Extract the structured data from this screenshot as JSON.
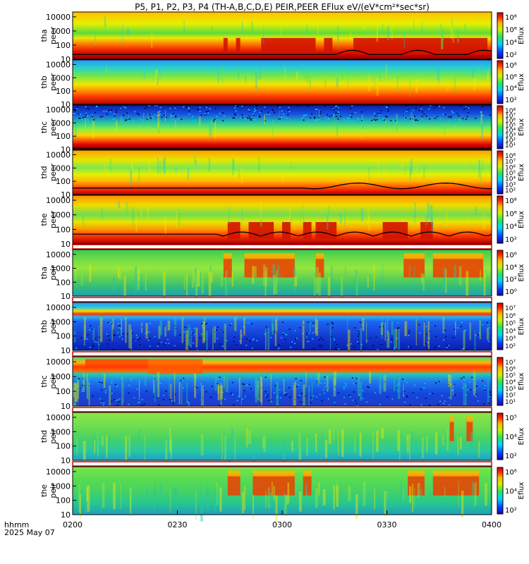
{
  "chart_data": {
    "type": "heatmap",
    "title": "P5, P1, P2, P3, P4 (TH-A,B,C,D,E) PEIR,PEER EFlux eV/(eV*cm²*sec*sr)",
    "x_axis": {
      "label_line1": "hhmm",
      "label_line2": "2025 May 07",
      "range": [
        "0200",
        "0400"
      ],
      "ticks": [
        "0200",
        "0230",
        "0300",
        "0330",
        "0400"
      ]
    },
    "y_scale": "log",
    "y_ticks": [
      "10",
      "100",
      "1000",
      "10000"
    ],
    "colorbar_label": "Eflux",
    "colormap": "rainbow (blue-green-yellow-red)",
    "panels": [
      {
        "probe": "tha",
        "species": "peer",
        "ylabel": "tha peer",
        "colorbar_ticks": [
          "10⁸",
          "10⁶",
          "10⁴",
          "10²"
        ],
        "has_black_curve": true
      },
      {
        "probe": "thb",
        "species": "peer",
        "ylabel": "thb peer",
        "colorbar_ticks": [
          "10⁸",
          "10⁶",
          "10⁴",
          "10²"
        ],
        "has_black_curve": false
      },
      {
        "probe": "thc",
        "species": "peer",
        "ylabel": "thc peer",
        "colorbar_ticks": [
          "10⁸",
          "10⁷",
          "10⁶",
          "10⁵",
          "10⁴",
          "10³",
          "10²",
          "10¹"
        ],
        "has_black_curve": true
      },
      {
        "probe": "thd",
        "species": "peer",
        "ylabel": "thd peer",
        "colorbar_ticks": [
          "10⁸",
          "10⁷",
          "10⁶",
          "10⁵",
          "10⁴",
          "10³",
          "10²"
        ],
        "has_black_curve": true
      },
      {
        "probe": "the",
        "species": "peer",
        "ylabel": "the peer",
        "colorbar_ticks": [
          "10⁸",
          "10⁶",
          "10⁴",
          "10²"
        ],
        "has_black_curve": true
      },
      {
        "probe": "tha",
        "species": "peir",
        "ylabel": "tha peir",
        "colorbar_ticks": [
          "10⁶",
          "10⁴",
          "10²",
          "10⁰"
        ],
        "has_black_curve": false
      },
      {
        "probe": "thb",
        "species": "peir",
        "ylabel": "thb peir",
        "colorbar_ticks": [
          "10⁷",
          "10⁶",
          "10⁵",
          "10⁴",
          "10³",
          "10²"
        ],
        "has_black_curve": false
      },
      {
        "probe": "thc",
        "species": "peir",
        "ylabel": "thc peir",
        "colorbar_ticks": [
          "10⁷",
          "10⁶",
          "10⁵",
          "10⁴",
          "10³",
          "10²",
          "10¹"
        ],
        "has_black_curve": false
      },
      {
        "probe": "thd",
        "species": "peir",
        "ylabel": "thd peir",
        "colorbar_ticks": [
          "10⁵",
          "10⁴",
          "10²"
        ],
        "has_black_curve": false
      },
      {
        "probe": "the",
        "species": "peir",
        "ylabel": "the peir",
        "colorbar_ticks": [
          "10⁶",
          "10⁴",
          "10²"
        ],
        "has_black_curve": false
      }
    ]
  }
}
